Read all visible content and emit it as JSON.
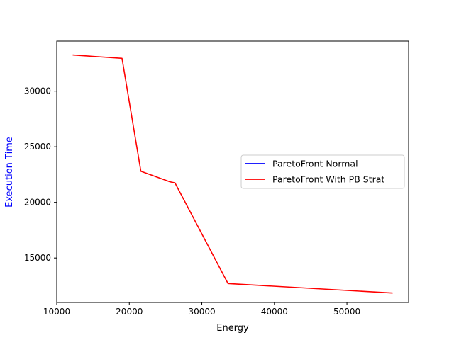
{
  "chart_data": {
    "type": "line",
    "title": "",
    "xlabel": "Energy",
    "ylabel": "Execution Time",
    "xlim": [
      10000,
      58500
    ],
    "ylim": [
      11000,
      34500
    ],
    "xticks": [
      10000,
      20000,
      30000,
      40000,
      50000
    ],
    "yticks": [
      15000,
      20000,
      25000,
      30000
    ],
    "xtick_labels": [
      "10000",
      "20000",
      "30000",
      "40000",
      "50000"
    ],
    "ytick_labels": [
      "15000",
      "20000",
      "25000",
      "30000"
    ],
    "grid": false,
    "legend_position": "center-right",
    "ylabel_color": "#0000ff",
    "series": [
      {
        "name": "ParetoFront Normal",
        "color": "#0000ff",
        "x": [],
        "y": []
      },
      {
        "name": "ParetoFront With PB Strat",
        "color": "#ff0000",
        "x": [
          12200,
          19000,
          21600,
          25600,
          26300,
          33600,
          56300
        ],
        "y": [
          33250,
          32950,
          22800,
          21850,
          21750,
          12700,
          11850
        ]
      }
    ]
  }
}
